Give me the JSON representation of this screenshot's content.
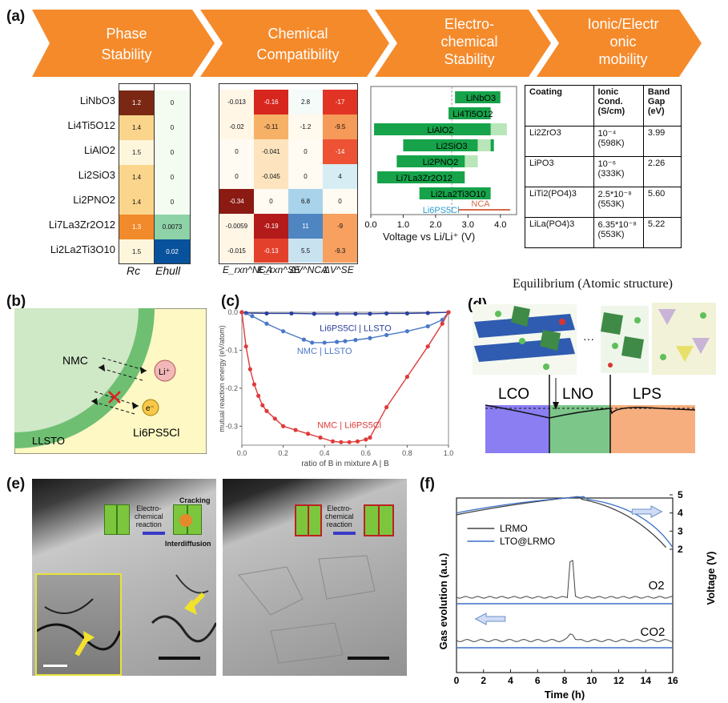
{
  "panels": {
    "a": "(a)",
    "b": "(b)",
    "c": "(c)",
    "d": "(d)",
    "e": "(e)",
    "f": "(f)"
  },
  "header_arrows": [
    {
      "line1": "Phase",
      "line2": "Stability",
      "line3": ""
    },
    {
      "line1": "Chemical",
      "line2": "Compatibility",
      "line3": ""
    },
    {
      "line1": "Electro-",
      "line2": "chemical",
      "line3": "Stability"
    },
    {
      "line1": "Ionic/Electr",
      "line2": "onic",
      "line3": "mobility"
    }
  ],
  "colors": {
    "arrow": "#f58a2b",
    "green_bar": "#16a34a",
    "nca_red": "#d6694a",
    "lpsc_blue": "#2aa0d0"
  },
  "heatmap1": {
    "rows": [
      "LiNbO3",
      "Li4Ti5O12",
      "LiAlO2",
      "Li2SiO3",
      "Li2PNO2",
      "Li7La3Zr2O12",
      "Li2La2Ti3O10"
    ],
    "rc": [
      "1.2",
      "1.4",
      "1.5",
      "1.4",
      "1.4",
      "1.3",
      "1.5"
    ],
    "ehull": [
      "0",
      "0",
      "0",
      "0",
      "0",
      "0.0073",
      "0.02"
    ],
    "col_rc": "Rc",
    "col_ehull": "Ehull"
  },
  "heatmap2": {
    "cols": [
      "E_rxn^NCA",
      "E_rxn^SE",
      "ΔV^NCA",
      "ΔV^SE"
    ],
    "values": [
      [
        "-0.013",
        "-0.16",
        "2.8",
        "-17"
      ],
      [
        "-0.02",
        "-0.11",
        "-1.2",
        "-9.5"
      ],
      [
        "0",
        "-0.041",
        "0",
        "-14"
      ],
      [
        "0",
        "-0.045",
        "0",
        "4"
      ],
      [
        "-0.34",
        "0",
        "6.8",
        "0"
      ],
      [
        "-0.0059",
        "-0.19",
        "11",
        "-9"
      ],
      [
        "-0.015",
        "-0.13",
        "5.5",
        "-9.3"
      ]
    ]
  },
  "stability_chart": {
    "type": "bar",
    "orientation": "horizontal",
    "xlabel": "Voltage vs Li/Li⁺ (V)",
    "xticks": [
      "0.0",
      "1.0",
      "2.0",
      "3.0",
      "4.0"
    ],
    "xlim": [
      0,
      4.5
    ],
    "bars": [
      {
        "label": "LiNbO3",
        "start": 2.6,
        "end": 4.0
      },
      {
        "label": "Li4Ti5O12",
        "start": 2.4,
        "end": 3.7
      },
      {
        "label": "LiAlO2",
        "start": 0.1,
        "end": 4.0
      },
      {
        "label": "Li2SiO3",
        "start": 1.0,
        "end": 3.8
      },
      {
        "label": "Li2PNO2",
        "start": 0.8,
        "end": 3.3
      },
      {
        "label": "Li7La3Zr2O12",
        "start": 0.2,
        "end": 2.9
      },
      {
        "label": "Li2La2Ti3O10",
        "start": 1.5,
        "end": 3.7
      }
    ],
    "ghost_bars": [
      {
        "start": 3.7,
        "end": 4.2
      },
      {
        "start": 3.3,
        "end": 3.7
      },
      {
        "start": 2.9,
        "end": 3.3
      }
    ],
    "lpsc_label": "Li6PS5Cl",
    "lpsc_range": [
      1.7,
      2.3
    ],
    "nca_label": "NCA",
    "nca_range": [
      2.7,
      4.3
    ]
  },
  "coating_table": {
    "headers": [
      "Coating",
      "Ionic Cond. (S/cm)",
      "Band Gap (eV)"
    ],
    "rows": [
      {
        "coating": "Li2ZrO3",
        "cond": "10⁻⁴",
        "cond2": "(598K)",
        "gap": "3.99"
      },
      {
        "coating": "LiPO3",
        "cond": "10⁻⁶",
        "cond2": "(333K)",
        "gap": "2.26"
      },
      {
        "coating": "LiTi2(PO4)3",
        "cond": "2.5*10⁻⁸",
        "cond2": "(553K)",
        "gap": "5.60"
      },
      {
        "coating": "LiLa(PO4)3",
        "cond": "6.35*10⁻⁸",
        "cond2": "(553K)",
        "gap": "5.22"
      }
    ]
  },
  "panel_b": {
    "nmc": "NMC",
    "llsto": "LLSTO",
    "li_ion": "Li⁺",
    "electron": "e⁻",
    "electrolyte": "Li6PS5Cl"
  },
  "chart_data": {
    "type": "line",
    "xlabel": "ratio of B in mixture A | B",
    "ylabel": "mutual reaction energy (eV/atom)",
    "xlim": [
      0,
      1
    ],
    "ylim": [
      -0.35,
      0.0
    ],
    "xticks": [
      "0.0",
      "0.2",
      "0.4",
      "0.6",
      "0.8",
      "1.0"
    ],
    "yticks": [
      "0.0",
      "-0.1",
      "-0.2",
      "-0.3"
    ],
    "series": [
      {
        "name": "Li6PS5Cl | LLSTO",
        "color": "#2b3f9e",
        "x": [
          0,
          0.02,
          0.12,
          0.24,
          0.35,
          0.46,
          0.55,
          0.62,
          0.7,
          0.8,
          0.9,
          1.0
        ],
        "y": [
          0,
          -0.002,
          -0.003,
          -0.003,
          -0.004,
          -0.004,
          -0.004,
          -0.004,
          -0.003,
          -0.003,
          -0.002,
          0
        ]
      },
      {
        "name": "NMC | LLSTO",
        "color": "#4a78c8",
        "x": [
          0,
          0.05,
          0.12,
          0.2,
          0.3,
          0.34,
          0.4,
          0.46,
          0.5,
          0.55,
          0.62,
          0.7,
          0.8,
          0.9,
          0.97,
          1.0
        ],
        "y": [
          0,
          -0.01,
          -0.03,
          -0.05,
          -0.072,
          -0.08,
          -0.08,
          -0.078,
          -0.076,
          -0.073,
          -0.068,
          -0.06,
          -0.05,
          -0.037,
          -0.02,
          0
        ]
      },
      {
        "name": "NMC | Li6PS5Cl",
        "color": "#e03a3a",
        "x": [
          0,
          0.02,
          0.04,
          0.06,
          0.08,
          0.1,
          0.12,
          0.16,
          0.2,
          0.26,
          0.32,
          0.38,
          0.44,
          0.48,
          0.52,
          0.56,
          0.6,
          0.62,
          0.7,
          0.8,
          0.9,
          0.97,
          1.0
        ],
        "y": [
          0,
          -0.09,
          -0.15,
          -0.19,
          -0.22,
          -0.245,
          -0.26,
          -0.28,
          -0.3,
          -0.31,
          -0.32,
          -0.33,
          -0.34,
          -0.342,
          -0.342,
          -0.34,
          -0.335,
          -0.33,
          -0.25,
          -0.17,
          -0.09,
          -0.03,
          0
        ]
      }
    ]
  },
  "panel_d": {
    "title": "Equilibrium (Atomic structure)",
    "ellipsis": "···",
    "lco": "LCO",
    "lno": "LNO",
    "lps": "LPS"
  },
  "panel_e": {
    "label1": "Electro-",
    "label2": "chemical",
    "label3": "reaction",
    "cracking": "Cracking",
    "interdiffusion": "Interdiffusion"
  },
  "panel_f": {
    "xlabel": "Time (h)",
    "ylabel_left": "Gas evolution (a.u.)",
    "ylabel_right": "Voltage (V)",
    "xticks": [
      "0",
      "2",
      "4",
      "6",
      "8",
      "10",
      "12",
      "14",
      "16"
    ],
    "yticks_right": [
      "2",
      "3",
      "4",
      "5"
    ],
    "legend": [
      "LRMO",
      "LTO@LRMO"
    ],
    "o2": "O2",
    "co2": "CO2"
  }
}
